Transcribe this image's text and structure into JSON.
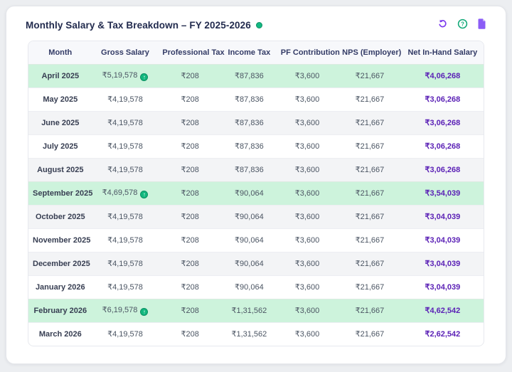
{
  "header": {
    "title": "Monthly Salary & Tax Breakdown – FY 2025-2026",
    "actions": {
      "refresh": "Refresh",
      "help": "Help",
      "export": "Export report"
    }
  },
  "colors": {
    "accent_purple": "#7c3aed",
    "accent_green": "#10b981",
    "highlight_row_green": "#cdf3dc",
    "net_salary_text": "#5b21b6",
    "header_text": "#333b66"
  },
  "table": {
    "columns": [
      "Month",
      "Gross Salary",
      "Professional Tax",
      "Income Tax",
      "PF Contribution",
      "NPS (Employer)",
      "Net In-Hand Salary"
    ],
    "column_keys": [
      "month",
      "gross_salary",
      "professional_tax",
      "income_tax",
      "pf_contribution",
      "nps_employer",
      "net_in_hand"
    ],
    "rows": [
      {
        "month": "April 2025",
        "gross_salary": "₹5,19,578",
        "gross_has_badge": true,
        "professional_tax": "₹208",
        "income_tax": "₹87,836",
        "pf_contribution": "₹3,600",
        "nps_employer": "₹21,667",
        "net_in_hand": "₹4,06,268",
        "highlight": "green"
      },
      {
        "month": "May 2025",
        "gross_salary": "₹4,19,578",
        "gross_has_badge": false,
        "professional_tax": "₹208",
        "income_tax": "₹87,836",
        "pf_contribution": "₹3,600",
        "nps_employer": "₹21,667",
        "net_in_hand": "₹3,06,268",
        "highlight": "white"
      },
      {
        "month": "June 2025",
        "gross_salary": "₹4,19,578",
        "gross_has_badge": false,
        "professional_tax": "₹208",
        "income_tax": "₹87,836",
        "pf_contribution": "₹3,600",
        "nps_employer": "₹21,667",
        "net_in_hand": "₹3,06,268",
        "highlight": "gray"
      },
      {
        "month": "July 2025",
        "gross_salary": "₹4,19,578",
        "gross_has_badge": false,
        "professional_tax": "₹208",
        "income_tax": "₹87,836",
        "pf_contribution": "₹3,600",
        "nps_employer": "₹21,667",
        "net_in_hand": "₹3,06,268",
        "highlight": "white"
      },
      {
        "month": "August 2025",
        "gross_salary": "₹4,19,578",
        "gross_has_badge": false,
        "professional_tax": "₹208",
        "income_tax": "₹87,836",
        "pf_contribution": "₹3,600",
        "nps_employer": "₹21,667",
        "net_in_hand": "₹3,06,268",
        "highlight": "gray"
      },
      {
        "month": "September 2025",
        "gross_salary": "₹4,69,578",
        "gross_has_badge": true,
        "professional_tax": "₹208",
        "income_tax": "₹90,064",
        "pf_contribution": "₹3,600",
        "nps_employer": "₹21,667",
        "net_in_hand": "₹3,54,039",
        "highlight": "green"
      },
      {
        "month": "October 2025",
        "gross_salary": "₹4,19,578",
        "gross_has_badge": false,
        "professional_tax": "₹208",
        "income_tax": "₹90,064",
        "pf_contribution": "₹3,600",
        "nps_employer": "₹21,667",
        "net_in_hand": "₹3,04,039",
        "highlight": "gray"
      },
      {
        "month": "November 2025",
        "gross_salary": "₹4,19,578",
        "gross_has_badge": false,
        "professional_tax": "₹208",
        "income_tax": "₹90,064",
        "pf_contribution": "₹3,600",
        "nps_employer": "₹21,667",
        "net_in_hand": "₹3,04,039",
        "highlight": "white"
      },
      {
        "month": "December 2025",
        "gross_salary": "₹4,19,578",
        "gross_has_badge": false,
        "professional_tax": "₹208",
        "income_tax": "₹90,064",
        "pf_contribution": "₹3,600",
        "nps_employer": "₹21,667",
        "net_in_hand": "₹3,04,039",
        "highlight": "gray"
      },
      {
        "month": "January 2026",
        "gross_salary": "₹4,19,578",
        "gross_has_badge": false,
        "professional_tax": "₹208",
        "income_tax": "₹90,064",
        "pf_contribution": "₹3,600",
        "nps_employer": "₹21,667",
        "net_in_hand": "₹3,04,039",
        "highlight": "white"
      },
      {
        "month": "February 2026",
        "gross_salary": "₹6,19,578",
        "gross_has_badge": true,
        "professional_tax": "₹208",
        "income_tax": "₹1,31,562",
        "pf_contribution": "₹3,600",
        "nps_employer": "₹21,667",
        "net_in_hand": "₹4,62,542",
        "highlight": "green"
      },
      {
        "month": "March 2026",
        "gross_salary": "₹4,19,578",
        "gross_has_badge": false,
        "professional_tax": "₹208",
        "income_tax": "₹1,31,562",
        "pf_contribution": "₹3,600",
        "nps_employer": "₹21,667",
        "net_in_hand": "₹2,62,542",
        "highlight": "white"
      }
    ]
  }
}
